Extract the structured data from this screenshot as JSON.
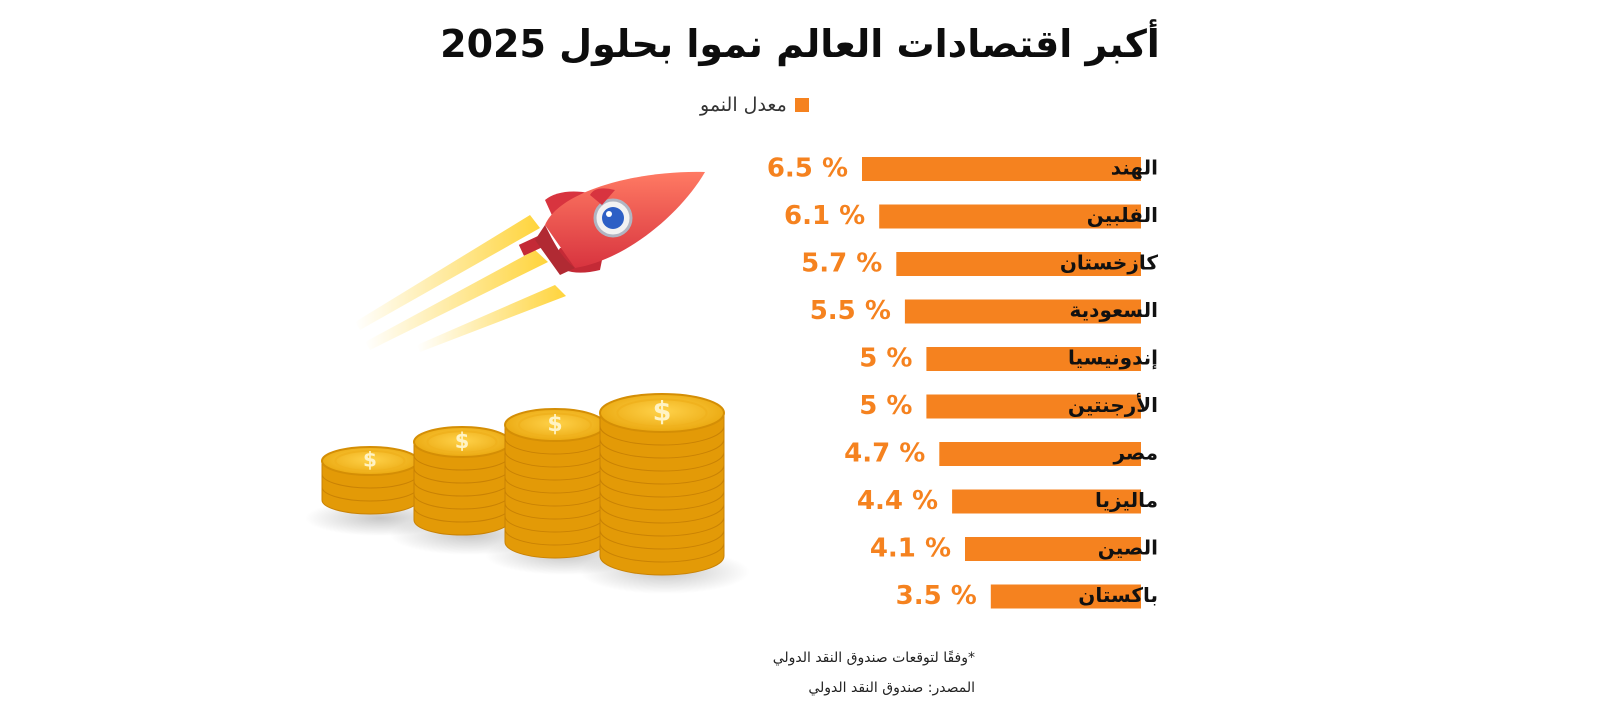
{
  "chart_data": {
    "type": "bar",
    "orientation": "horizontal",
    "title": "أكبر اقتصادات العالم نموا بحلول 2025",
    "categories": [
      "الهند",
      "الفلبين",
      "كازخستان",
      "السعودية",
      "إندونيسيا",
      "الأرجنتين",
      "مصر",
      "ماليزيا",
      "الصين",
      "باكستان"
    ],
    "series": [
      {
        "name": "معدل النمو",
        "values": [
          6.5,
          6.1,
          5.7,
          5.5,
          5,
          5,
          4.7,
          4.4,
          4.1,
          3.5
        ]
      }
    ],
    "value_labels": [
      "6.5 %",
      "6.1 %",
      "5.7 %",
      "5.5 %",
      "5 %",
      "5 %",
      "4.7 %",
      "4.4 %",
      "4.1 %",
      "3.5 %"
    ],
    "legend_position": "top",
    "grid": false,
    "colors": {
      "bar": "#F5821F",
      "value_text": "#F5821F"
    }
  },
  "footnote": "*وفقًا لتوقعات صندوق النقد الدولي",
  "source": "المصدر: صندوق النقد الدولي",
  "illustration": {
    "icons": [
      "rocket-icon",
      "coin-stack-icon",
      "dollar-icon"
    ]
  }
}
